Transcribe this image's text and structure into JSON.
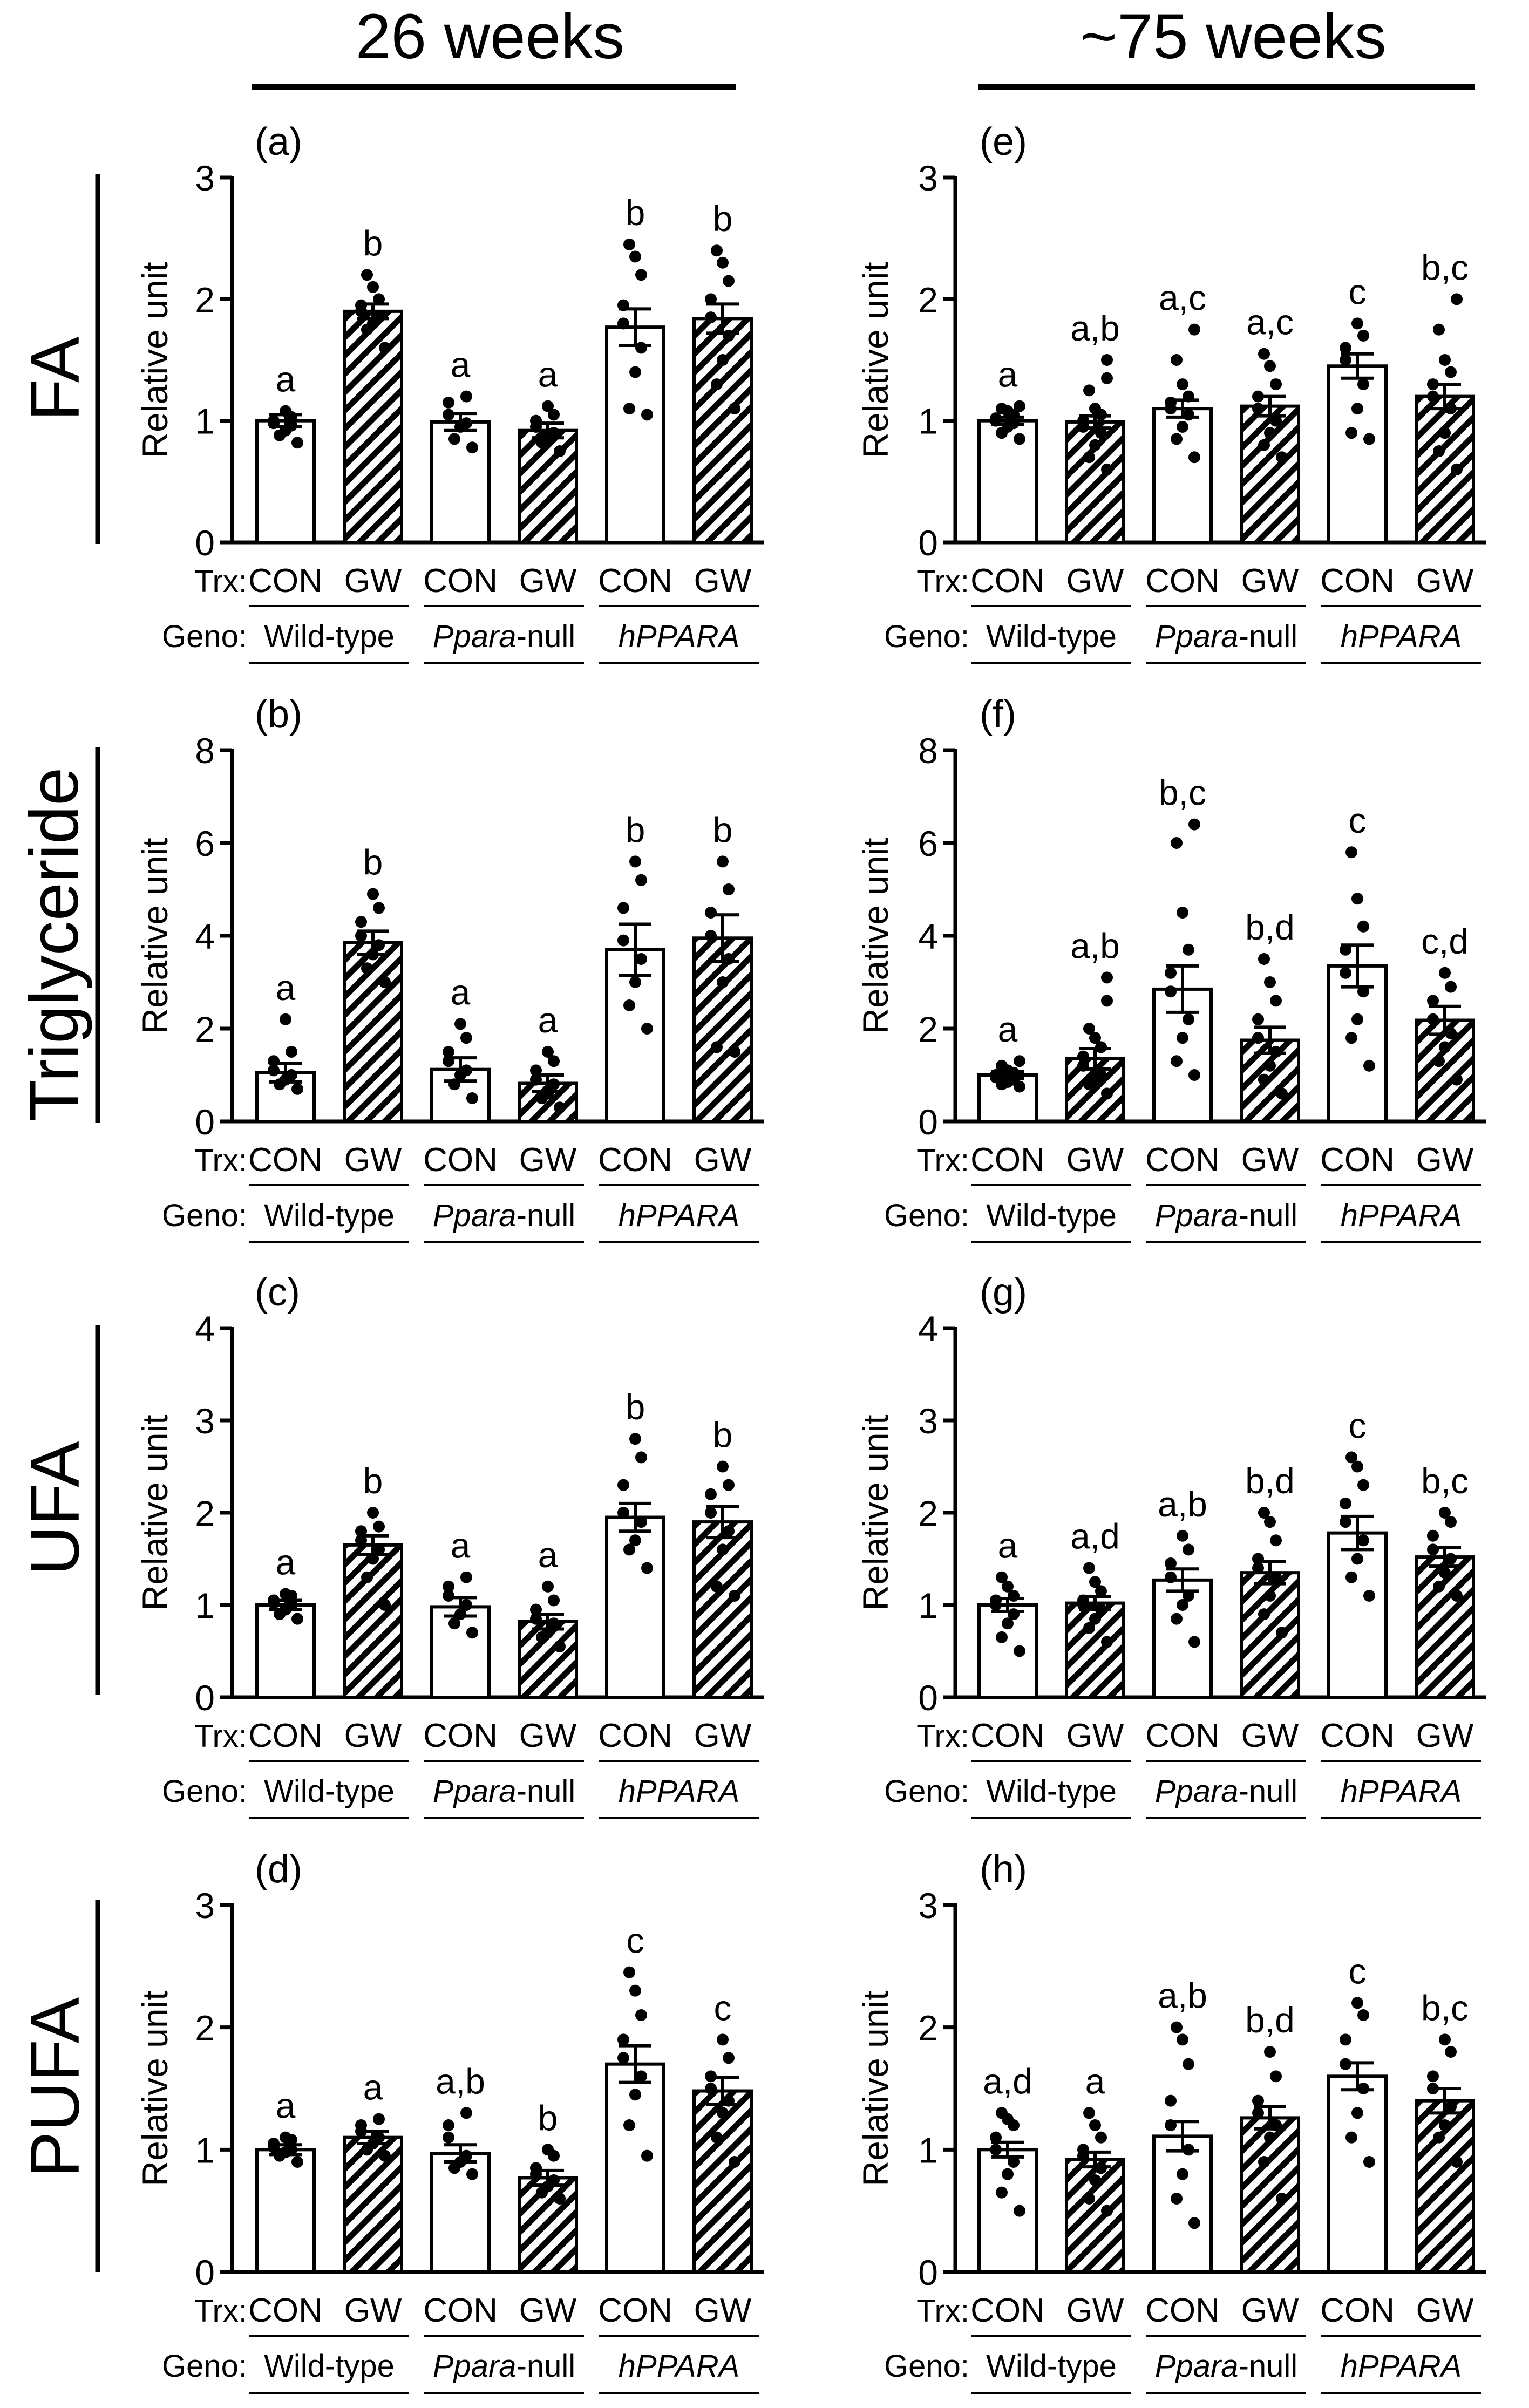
{
  "column_headers": [
    "26 weeks",
    "~75 weeks"
  ],
  "row_labels": [
    "FA",
    "Triglyceride",
    "UFA",
    "PUFA"
  ],
  "trx_prefix": "Trx:",
  "geno_prefix": "Geno:",
  "treatments": [
    "CON",
    "GW",
    "CON",
    "GW",
    "CON",
    "GW"
  ],
  "genotypes": [
    {
      "italic": "",
      "plain": "Wild-type"
    },
    {
      "italic": "Ppara",
      "plain": "-null"
    },
    {
      "italic": "hPPARA",
      "plain": ""
    }
  ],
  "colors": {
    "bar_fill": "#ffffff",
    "stroke": "#000000",
    "point": "#000000"
  },
  "chart_data": [
    {
      "panel": "(a)",
      "type": "bar",
      "title": "FA, 26 weeks",
      "ylabel": "Relative unit",
      "ylim": [
        0,
        3
      ],
      "yticks": [
        0,
        1,
        2,
        3
      ],
      "categories": [
        "Wild-type CON",
        "Wild-type GW",
        "Ppara-null CON",
        "Ppara-null GW",
        "hPPARA CON",
        "hPPARA GW"
      ],
      "values": [
        1.0,
        1.9,
        0.99,
        0.92,
        1.77,
        1.84
      ],
      "sem": [
        0.05,
        0.06,
        0.07,
        0.06,
        0.15,
        0.12
      ],
      "letters": [
        "a",
        "b",
        "a",
        "a",
        "b",
        "b"
      ],
      "points": [
        [
          0.82,
          0.88,
          0.92,
          0.96,
          0.98,
          1.0,
          1.03,
          1.08
        ],
        [
          1.6,
          1.75,
          1.8,
          1.85,
          1.9,
          1.95,
          2.0,
          2.1,
          2.2
        ],
        [
          0.78,
          0.85,
          0.95,
          0.98,
          1.05,
          1.15,
          1.2
        ],
        [
          0.75,
          0.82,
          0.88,
          0.9,
          0.95,
          1.0,
          1.05,
          1.12
        ],
        [
          1.05,
          1.1,
          1.4,
          1.6,
          1.8,
          1.95,
          2.2,
          2.35,
          2.45
        ],
        [
          1.1,
          1.3,
          1.5,
          1.7,
          1.85,
          2.0,
          2.15,
          2.3,
          2.4
        ]
      ]
    },
    {
      "panel": "(b)",
      "type": "bar",
      "title": "Triglyceride, 26 weeks",
      "ylabel": "Relative unit",
      "ylim": [
        0,
        8
      ],
      "yticks": [
        0,
        2,
        4,
        6,
        8
      ],
      "categories": [
        "Wild-type CON",
        "Wild-type GW",
        "Ppara-null CON",
        "Ppara-null GW",
        "hPPARA CON",
        "hPPARA GW"
      ],
      "values": [
        1.05,
        3.85,
        1.12,
        0.82,
        3.7,
        3.95
      ],
      "sem": [
        0.2,
        0.25,
        0.25,
        0.18,
        0.55,
        0.5
      ],
      "letters": [
        "a",
        "b",
        "a",
        "a",
        "b",
        "b"
      ],
      "points": [
        [
          0.7,
          0.8,
          0.9,
          1.0,
          1.1,
          1.3,
          1.5,
          2.2
        ],
        [
          3.0,
          3.3,
          3.6,
          3.8,
          4.0,
          4.3,
          4.6,
          4.9
        ],
        [
          0.5,
          0.8,
          1.0,
          1.1,
          1.3,
          1.5,
          1.8,
          2.1
        ],
        [
          0.3,
          0.5,
          0.6,
          0.8,
          0.9,
          1.1,
          1.3,
          1.5
        ],
        [
          2.0,
          2.5,
          3.0,
          3.5,
          3.9,
          4.6,
          5.2,
          5.6
        ],
        [
          1.5,
          1.6,
          3.0,
          3.5,
          4.0,
          4.5,
          5.0,
          5.6
        ]
      ]
    },
    {
      "panel": "(c)",
      "type": "bar",
      "title": "UFA, 26 weeks",
      "ylabel": "Relative unit",
      "ylim": [
        0,
        4
      ],
      "yticks": [
        0,
        1,
        2,
        3,
        4
      ],
      "categories": [
        "Wild-type CON",
        "Wild-type GW",
        "Ppara-null CON",
        "Ppara-null GW",
        "hPPARA CON",
        "hPPARA GW"
      ],
      "values": [
        1.0,
        1.65,
        0.98,
        0.82,
        1.95,
        1.9
      ],
      "sem": [
        0.05,
        0.1,
        0.1,
        0.08,
        0.15,
        0.17
      ],
      "letters": [
        "a",
        "b",
        "a",
        "a",
        "b",
        "b"
      ],
      "points": [
        [
          0.85,
          0.9,
          0.95,
          1.0,
          1.02,
          1.05,
          1.1,
          1.12
        ],
        [
          1.0,
          1.3,
          1.5,
          1.6,
          1.7,
          1.8,
          1.85,
          2.0
        ],
        [
          0.7,
          0.8,
          0.9,
          1.0,
          1.1,
          1.2,
          1.3
        ],
        [
          0.55,
          0.65,
          0.7,
          0.8,
          0.85,
          0.95,
          1.05,
          1.2
        ],
        [
          1.4,
          1.6,
          1.7,
          1.9,
          2.0,
          2.3,
          2.6,
          2.8
        ],
        [
          1.1,
          1.2,
          1.6,
          1.8,
          2.0,
          2.2,
          2.3,
          2.5
        ]
      ]
    },
    {
      "panel": "(d)",
      "type": "bar",
      "title": "PUFA, 26 weeks",
      "ylabel": "Relative unit",
      "ylim": [
        0,
        3
      ],
      "yticks": [
        0,
        1,
        2,
        3
      ],
      "categories": [
        "Wild-type CON",
        "Wild-type GW",
        "Ppara-null CON",
        "Ppara-null GW",
        "hPPARA CON",
        "hPPARA GW"
      ],
      "values": [
        1.0,
        1.1,
        0.97,
        0.77,
        1.7,
        1.48
      ],
      "sem": [
        0.04,
        0.05,
        0.07,
        0.06,
        0.15,
        0.11
      ],
      "letters": [
        "a",
        "a",
        "a,b",
        "b",
        "c",
        "c"
      ],
      "points": [
        [
          0.9,
          0.95,
          0.98,
          1.0,
          1.02,
          1.05,
          1.08,
          1.1
        ],
        [
          0.95,
          1.0,
          1.05,
          1.1,
          1.15,
          1.2,
          1.25
        ],
        [
          0.8,
          0.85,
          0.9,
          0.95,
          1.1,
          1.2,
          1.3
        ],
        [
          0.6,
          0.65,
          0.7,
          0.75,
          0.8,
          0.85,
          0.95,
          1.0
        ],
        [
          0.95,
          1.2,
          1.45,
          1.6,
          1.75,
          1.9,
          2.1,
          2.3,
          2.45
        ],
        [
          0.9,
          1.1,
          1.3,
          1.4,
          1.5,
          1.6,
          1.75,
          1.9
        ]
      ]
    },
    {
      "panel": "(e)",
      "type": "bar",
      "title": "FA, ~75 weeks",
      "ylabel": "Relative unit",
      "ylim": [
        0,
        3
      ],
      "yticks": [
        0,
        1,
        2,
        3
      ],
      "categories": [
        "Wild-type CON",
        "Wild-type GW",
        "Ppara-null CON",
        "Ppara-null GW",
        "hPPARA CON",
        "hPPARA GW"
      ],
      "values": [
        1.0,
        0.99,
        1.1,
        1.12,
        1.45,
        1.2
      ],
      "sem": [
        0.03,
        0.05,
        0.07,
        0.08,
        0.1,
        0.1
      ],
      "letters": [
        "a",
        "a,b",
        "a,c",
        "a,c",
        "c",
        "b,c"
      ],
      "points": [
        [
          0.85,
          0.9,
          0.95,
          0.98,
          1.0,
          1.02,
          1.05,
          1.08,
          1.1,
          1.12
        ],
        [
          0.6,
          0.7,
          0.8,
          0.9,
          0.95,
          1.0,
          1.05,
          1.1,
          1.25,
          1.35,
          1.5
        ],
        [
          0.7,
          0.85,
          0.95,
          1.05,
          1.1,
          1.15,
          1.2,
          1.3,
          1.5,
          1.75
        ],
        [
          0.7,
          0.8,
          0.9,
          1.0,
          1.1,
          1.2,
          1.3,
          1.45,
          1.55
        ],
        [
          0.85,
          0.9,
          1.1,
          1.3,
          1.5,
          1.6,
          1.7,
          1.8
        ],
        [
          0.6,
          0.75,
          0.9,
          1.1,
          1.2,
          1.3,
          1.4,
          1.5,
          1.75,
          2.0
        ]
      ]
    },
    {
      "panel": "(f)",
      "type": "bar",
      "title": "Triglyceride, ~75 weeks",
      "ylabel": "Relative unit",
      "ylim": [
        0,
        8
      ],
      "yticks": [
        0,
        2,
        4,
        6,
        8
      ],
      "categories": [
        "Wild-type CON",
        "Wild-type GW",
        "Ppara-null CON",
        "Ppara-null GW",
        "hPPARA CON",
        "hPPARA GW"
      ],
      "values": [
        1.0,
        1.35,
        2.85,
        1.75,
        3.35,
        2.18
      ],
      "sem": [
        0.08,
        0.22,
        0.5,
        0.28,
        0.45,
        0.3
      ],
      "letters": [
        "a",
        "a,b",
        "b,c",
        "b,d",
        "c",
        "c,d"
      ],
      "points": [
        [
          0.75,
          0.8,
          0.85,
          0.9,
          0.95,
          1.0,
          1.05,
          1.1,
          1.2,
          1.3
        ],
        [
          0.6,
          0.8,
          0.9,
          1.0,
          1.2,
          1.4,
          1.6,
          1.8,
          2.0,
          2.6,
          3.1
        ],
        [
          1.0,
          1.3,
          1.8,
          2.2,
          2.8,
          3.2,
          3.7,
          4.5,
          6.0,
          6.4
        ],
        [
          0.6,
          0.9,
          1.2,
          1.5,
          1.8,
          2.2,
          2.6,
          3.0,
          3.5
        ],
        [
          1.2,
          1.8,
          2.2,
          2.8,
          3.2,
          3.7,
          4.2,
          4.8,
          5.8
        ],
        [
          0.9,
          1.3,
          1.6,
          1.9,
          2.2,
          2.6,
          2.9,
          3.2
        ]
      ]
    },
    {
      "panel": "(g)",
      "type": "bar",
      "title": "UFA, ~75 weeks",
      "ylabel": "Relative unit",
      "ylim": [
        0,
        4
      ],
      "yticks": [
        0,
        1,
        2,
        3,
        4
      ],
      "categories": [
        "Wild-type CON",
        "Wild-type GW",
        "Ppara-null CON",
        "Ppara-null GW",
        "hPPARA CON",
        "hPPARA GW"
      ],
      "values": [
        1.0,
        1.02,
        1.27,
        1.35,
        1.78,
        1.52
      ],
      "sem": [
        0.07,
        0.07,
        0.12,
        0.12,
        0.18,
        0.1
      ],
      "letters": [
        "a",
        "a,d",
        "a,b",
        "b,d",
        "c",
        "b,c"
      ],
      "points": [
        [
          0.5,
          0.65,
          0.8,
          0.9,
          1.0,
          1.05,
          1.1,
          1.2,
          1.3
        ],
        [
          0.6,
          0.75,
          0.85,
          0.95,
          1.0,
          1.05,
          1.15,
          1.25,
          1.4
        ],
        [
          0.6,
          0.85,
          1.0,
          1.1,
          1.3,
          1.45,
          1.6,
          1.75
        ],
        [
          0.7,
          0.9,
          1.1,
          1.3,
          1.4,
          1.5,
          1.7,
          1.9,
          2.0
        ],
        [
          1.1,
          1.3,
          1.5,
          1.7,
          1.9,
          2.1,
          2.3,
          2.5,
          2.6
        ],
        [
          1.1,
          1.2,
          1.35,
          1.5,
          1.6,
          1.75,
          1.9,
          2.0
        ]
      ]
    },
    {
      "panel": "(h)",
      "type": "bar",
      "title": "PUFA, ~75 weeks",
      "ylabel": "Relative unit",
      "ylim": [
        0,
        3
      ],
      "yticks": [
        0,
        1,
        2,
        3
      ],
      "categories": [
        "Wild-type CON",
        "Wild-type GW",
        "Ppara-null CON",
        "Ppara-null GW",
        "hPPARA CON",
        "hPPARA GW"
      ],
      "values": [
        1.0,
        0.92,
        1.11,
        1.26,
        1.6,
        1.4
      ],
      "sem": [
        0.06,
        0.06,
        0.12,
        0.09,
        0.11,
        0.1
      ],
      "letters": [
        "a,d",
        "a",
        "a,b",
        "b,d",
        "c",
        "b,c"
      ],
      "points": [
        [
          0.5,
          0.65,
          0.8,
          0.9,
          1.0,
          1.1,
          1.2,
          1.25,
          1.3
        ],
        [
          0.5,
          0.6,
          0.75,
          0.85,
          0.95,
          1.0,
          1.1,
          1.2,
          1.3
        ],
        [
          0.4,
          0.6,
          0.8,
          1.0,
          1.2,
          1.4,
          1.7,
          1.9,
          2.0
        ],
        [
          0.6,
          0.9,
          1.1,
          1.2,
          1.3,
          1.4,
          1.6,
          1.8
        ],
        [
          0.9,
          1.1,
          1.3,
          1.5,
          1.7,
          1.9,
          2.1,
          2.2
        ],
        [
          0.9,
          1.1,
          1.2,
          1.35,
          1.5,
          1.6,
          1.8,
          1.9
        ]
      ]
    }
  ]
}
